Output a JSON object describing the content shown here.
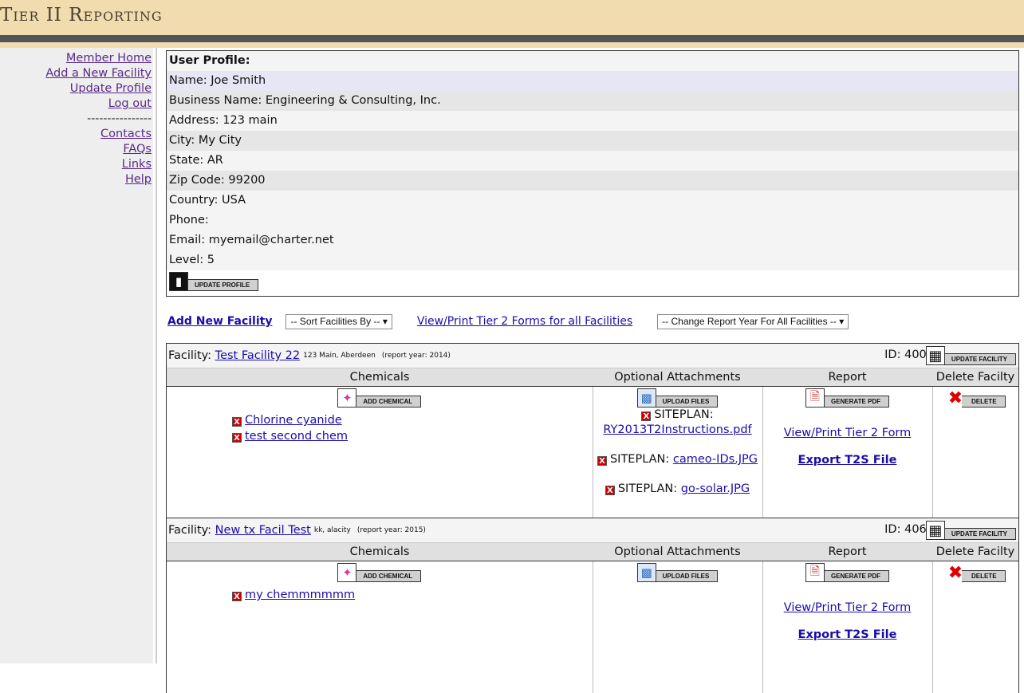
{
  "header": {
    "title": "Tier II Reporting"
  },
  "sidebar": {
    "items": [
      "Member Home",
      "Add a New Facility",
      "Update Profile",
      "Log out"
    ],
    "separator": "----------------",
    "items2": [
      "Contacts",
      "FAQs",
      "Links",
      "Help"
    ]
  },
  "profile": {
    "heading": "User Profile:",
    "rows": [
      "Name: Joe Smith",
      "Business Name: Engineering & Consulting, Inc.",
      "Address: 123 main",
      "City: My City",
      "State: AR",
      "Zip Code: 99200",
      "Country: USA",
      "Phone:",
      "Email: myemail@charter.net",
      "Level: 5"
    ],
    "update_button": "UPDATE PROFILE"
  },
  "toolbar": {
    "add_facility": "Add New Facility",
    "sort_select": "-- Sort Facilities By --",
    "view_all": "View/Print Tier 2 Forms for all Facilities",
    "year_select": "-- Change Report Year For All Facilities --"
  },
  "columns": [
    "Chemicals",
    "Optional Attachments",
    "Report",
    "Delete Facilty"
  ],
  "buttons": {
    "add_chemical": "ADD CHEMICAL",
    "upload_files": "UPLOAD FILES",
    "generate_pdf": "GENERATE PDF",
    "delete": "DELETE",
    "update_facility": "UPDATE FACILITY",
    "view_print": "View/Print Tier 2 Form",
    "export": "Export T2S File",
    "facility_label": "Facility:",
    "siteplan": "SITEPLAN:"
  },
  "facilities": [
    {
      "name": "Test Facility 22",
      "address": "123 Main, Aberdeen",
      "year": "(report year: 2014)",
      "id": "ID: 4001",
      "chemicals": [
        "Chlorine cyanide",
        "test second chem"
      ],
      "attachments": [
        "RY2013T2Instructions.pdf",
        "cameo-IDs.JPG",
        "go-solar.JPG"
      ]
    },
    {
      "name": "New tx Facil Test",
      "address": "kk, alacity",
      "year": "(report year: 2015)",
      "id": "ID: 4069",
      "chemicals": [
        "my chemmmmmm"
      ],
      "attachments": []
    }
  ]
}
